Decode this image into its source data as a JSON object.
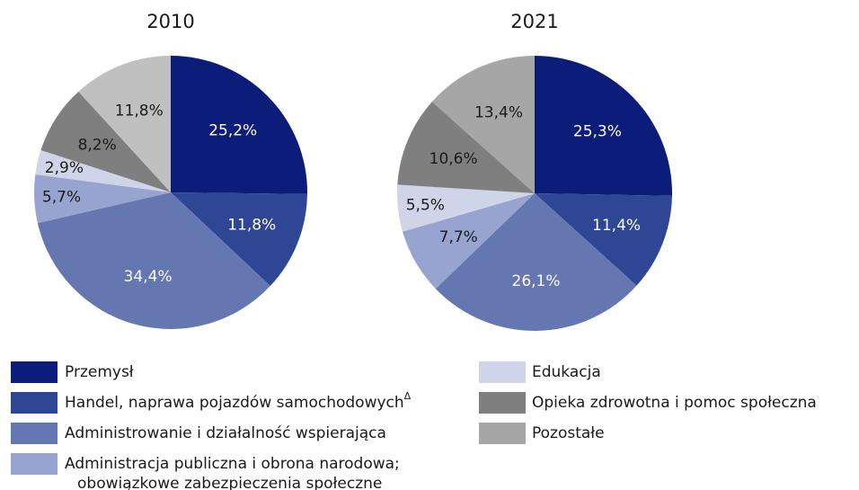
{
  "chart_data": [
    {
      "type": "pie",
      "title": "2010",
      "values": [
        25.2,
        11.8,
        34.4,
        5.7,
        2.9,
        8.2,
        11.8
      ],
      "value_labels": [
        "25,2%",
        "11,8%",
        "34,4%",
        "5,7%",
        "2,9%",
        "8,2%",
        "11,8%"
      ],
      "colors": [
        "#0b1d78",
        "#2e4694",
        "#6577b0",
        "#97a4cf",
        "#cfd4e9",
        "#7f7f7f",
        "#c0c0c0"
      ]
    },
    {
      "type": "pie",
      "title": "2021",
      "values": [
        25.3,
        11.4,
        26.1,
        7.7,
        5.5,
        10.6,
        13.4
      ],
      "value_labels": [
        "25,3%",
        "11,4%",
        "26,1%",
        "7,7%",
        "5,5%",
        "10,6%",
        "13,4%"
      ],
      "colors": [
        "#0b1d78",
        "#2e4694",
        "#6577b0",
        "#97a4cf",
        "#cfd4e9",
        "#7f7f7f",
        "#a6a6a6"
      ]
    }
  ],
  "legend": {
    "items": [
      {
        "label": [
          "Przemysł"
        ],
        "color": "#0b1d78"
      },
      {
        "label": [
          "Handel, naprawa pojazdów samochodowych"
        ],
        "sup": "Δ",
        "color": "#2e4694"
      },
      {
        "label": [
          "Administrowanie i działalność wspierająca"
        ],
        "color": "#6577b0"
      },
      {
        "label": [
          "Administracja publiczna i obrona narodowa;",
          "obowiązkowe zabezpieczenia społeczne"
        ],
        "color": "#97a4cf"
      },
      {
        "label": [
          "Edukacja"
        ],
        "color": "#cfd4e9"
      },
      {
        "label": [
          "Opieka zdrowotna i pomoc społeczna"
        ],
        "color": "#7f7f7f"
      },
      {
        "label": [
          "Pozostałe"
        ],
        "color": "#a6a6a6"
      }
    ]
  }
}
